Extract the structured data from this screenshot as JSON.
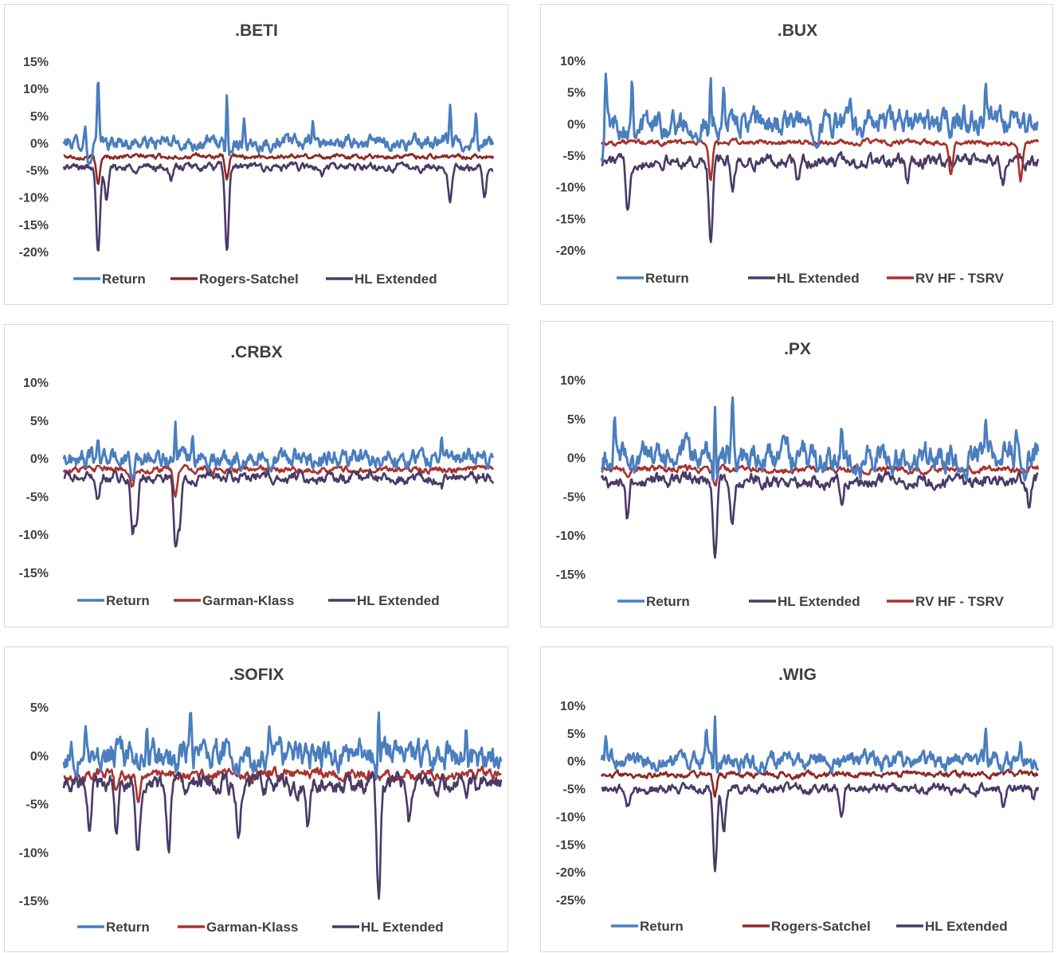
{
  "colors": {
    "Return": "#4a7ebf",
    "Rogers-Satchel": "#8b2a26",
    "Garman-Klass": "#a83430",
    "HL Extended": "#4a3a66",
    "RV HF - TSRV": "#a8322d"
  },
  "chart_data": [
    {
      "type": "line",
      "title": ".BETI",
      "ylim": [
        -20,
        15
      ],
      "yticks": [
        "15%",
        "10%",
        "5%",
        "0%",
        "-5%",
        "-10%",
        "-15%",
        "-20%"
      ],
      "ytick_values": [
        15,
        10,
        5,
        0,
        -5,
        -10,
        -15,
        -20
      ],
      "legend": [
        "Return",
        "Rogers-Satchel",
        "HL Extended"
      ],
      "legend_placement": "bottom",
      "grid": false,
      "series": [
        {
          "name": "Return",
          "approx": {
            "base": 0,
            "noise": 0.9,
            "spikes": [
              [
                0.08,
                12
              ],
              [
                0.05,
                3
              ],
              [
                0.38,
                9
              ],
              [
                0.58,
                4
              ],
              [
                0.42,
                4.5
              ],
              [
                0.9,
                7
              ],
              [
                0.96,
                5.5
              ]
            ],
            "dips": [
              [
                0.06,
                -4
              ],
              [
                0.38,
                -5
              ]
            ]
          }
        },
        {
          "name": "Rogers-Satchel",
          "approx": {
            "base": -2.5,
            "noise": 0.3,
            "dips": [
              [
                0.08,
                -8
              ],
              [
                0.38,
                -7
              ]
            ]
          }
        },
        {
          "name": "HL Extended",
          "approx": {
            "base": -4.5,
            "noise": 0.5,
            "dips": [
              [
                0.08,
                -19.5
              ],
              [
                0.38,
                -20
              ],
              [
                0.1,
                -11
              ],
              [
                0.25,
                -7
              ],
              [
                0.6,
                -6
              ],
              [
                0.9,
                -11
              ],
              [
                0.98,
                -10
              ]
            ]
          }
        }
      ]
    },
    {
      "type": "line",
      "title": ".BUX",
      "ylim": [
        -20,
        10
      ],
      "yticks": [
        "10%",
        "5%",
        "0%",
        "-5%",
        "-10%",
        "-15%",
        "-20%"
      ],
      "ytick_values": [
        10,
        5,
        0,
        -5,
        -10,
        -15,
        -20
      ],
      "legend": [
        "Return",
        "HL Extended",
        "RV HF - TSRV"
      ],
      "legend_placement": "bottom",
      "grid": false,
      "series": [
        {
          "name": "Return",
          "approx": {
            "base": 0,
            "noise": 1.5,
            "spikes": [
              [
                0.01,
                8
              ],
              [
                0.07,
                7
              ],
              [
                0.25,
                7.5
              ],
              [
                0.28,
                6
              ],
              [
                0.57,
                4
              ],
              [
                0.88,
                6.5
              ],
              [
                0.83,
                3
              ]
            ],
            "dips": [
              [
                0.0,
                -4
              ],
              [
                0.25,
                -6
              ]
            ]
          }
        },
        {
          "name": "HL Extended",
          "approx": {
            "base": -6,
            "noise": 0.7,
            "dips": [
              [
                0.06,
                -13.5
              ],
              [
                0.25,
                -19
              ],
              [
                0.3,
                -10
              ],
              [
                0.45,
                -9
              ],
              [
                0.7,
                -9.5
              ],
              [
                0.92,
                -9
              ]
            ]
          }
        },
        {
          "name": "RV HF - TSRV",
          "approx": {
            "base": -3,
            "noise": 0.3,
            "dips": [
              [
                0.25,
                -9
              ],
              [
                0.8,
                -8
              ],
              [
                0.96,
                -9
              ]
            ]
          }
        }
      ]
    },
    {
      "type": "line",
      "title": ".CRBX",
      "ylim": [
        -15,
        10
      ],
      "yticks": [
        "10%",
        "5%",
        "0%",
        "-5%",
        "-10%",
        "-15%"
      ],
      "ytick_values": [
        10,
        5,
        0,
        -5,
        -10,
        -15
      ],
      "legend": [
        "Return",
        "Garman-Klass",
        "HL Extended"
      ],
      "legend_placement": "bottom",
      "grid": false,
      "series": [
        {
          "name": "Return",
          "approx": {
            "base": 0,
            "noise": 0.8,
            "spikes": [
              [
                0.26,
                4.8
              ],
              [
                0.08,
                2.5
              ],
              [
                0.3,
                3
              ],
              [
                0.88,
                2.8
              ]
            ],
            "dips": [
              [
                0.16,
                -3
              ],
              [
                0.26,
                -4
              ]
            ]
          }
        },
        {
          "name": "Garman-Klass",
          "approx": {
            "base": -1.5,
            "noise": 0.3,
            "dips": [
              [
                0.26,
                -5
              ],
              [
                0.16,
                -3.5
              ]
            ]
          }
        },
        {
          "name": "HL Extended",
          "approx": {
            "base": -2.5,
            "noise": 0.5,
            "dips": [
              [
                0.16,
                -9.5
              ],
              [
                0.17,
                -8
              ],
              [
                0.26,
                -11.5
              ],
              [
                0.27,
                -9
              ],
              [
                0.08,
                -5
              ],
              [
                0.88,
                -4
              ]
            ]
          }
        }
      ]
    },
    {
      "type": "line",
      "title": ".PX",
      "ylim": [
        -15,
        10
      ],
      "yticks": [
        "10%",
        "5%",
        "0%",
        "-5%",
        "-10%",
        "-15%"
      ],
      "ytick_values": [
        10,
        5,
        0,
        -5,
        -10,
        -15
      ],
      "legend": [
        "Return",
        "HL Extended",
        "RV HF - TSRV"
      ],
      "legend_placement": "bottom",
      "grid": false,
      "series": [
        {
          "name": "Return",
          "approx": {
            "base": 0,
            "noise": 1.3,
            "spikes": [
              [
                0.26,
                6.5
              ],
              [
                0.3,
                8
              ],
              [
                0.03,
                5.5
              ],
              [
                0.55,
                4
              ],
              [
                0.88,
                5
              ],
              [
                0.95,
                3.5
              ]
            ],
            "dips": [
              [
                0.26,
                -5
              ],
              [
                0.0,
                -2.5
              ]
            ]
          }
        },
        {
          "name": "HL Extended",
          "approx": {
            "base": -3,
            "noise": 0.6,
            "dips": [
              [
                0.26,
                -12.5
              ],
              [
                0.3,
                -8.5
              ],
              [
                0.06,
                -8
              ],
              [
                0.55,
                -6
              ],
              [
                0.98,
                -6
              ]
            ]
          }
        },
        {
          "name": "RV HF - TSRV",
          "approx": {
            "base": -1.5,
            "noise": 0.3,
            "dips": [
              [
                0.26,
                -4
              ],
              [
                0.06,
                -3
              ]
            ]
          }
        }
      ]
    },
    {
      "type": "line",
      "title": ".SOFIX",
      "ylim": [
        -15,
        5
      ],
      "yticks": [
        "5%",
        "0%",
        "-5%",
        "-10%",
        "-15%"
      ],
      "ytick_values": [
        5,
        0,
        -5,
        -10,
        -15
      ],
      "legend": [
        "Return",
        "Garman-Klass",
        "HL Extended"
      ],
      "legend_placement": "bottom",
      "grid": false,
      "series": [
        {
          "name": "Return",
          "approx": {
            "base": 0,
            "noise": 1.1,
            "spikes": [
              [
                0.29,
                4.8
              ],
              [
                0.72,
                4.8
              ],
              [
                0.19,
                3
              ],
              [
                0.05,
                3
              ],
              [
                0.47,
                3
              ],
              [
                0.92,
                3
              ]
            ],
            "dips": [
              [
                0.19,
                -3
              ],
              [
                0.72,
                -3
              ]
            ]
          }
        },
        {
          "name": "Garman-Klass",
          "approx": {
            "base": -2,
            "noise": 0.4,
            "dips": [
              [
                0.17,
                -5
              ],
              [
                0.12,
                -4
              ]
            ]
          }
        },
        {
          "name": "HL Extended",
          "approx": {
            "base": -3,
            "noise": 0.7,
            "dips": [
              [
                0.06,
                -8
              ],
              [
                0.12,
                -9
              ],
              [
                0.17,
                -10
              ],
              [
                0.24,
                -10
              ],
              [
                0.4,
                -9
              ],
              [
                0.72,
                -14.5
              ],
              [
                0.56,
                -7
              ],
              [
                0.79,
                -6.5
              ]
            ]
          }
        }
      ]
    },
    {
      "type": "line",
      "title": ".WIG",
      "ylim": [
        -25,
        10
      ],
      "yticks": [
        "10%",
        "5%",
        "0%",
        "-5%",
        "-10%",
        "-15%",
        "-20%",
        "-25%"
      ],
      "ytick_values": [
        10,
        5,
        0,
        -5,
        -10,
        -15,
        -20,
        -25
      ],
      "legend": [
        "Return",
        "Rogers-Satchel",
        "HL Extended"
      ],
      "legend_placement": "bottom",
      "grid": false,
      "series": [
        {
          "name": "Return",
          "approx": {
            "base": 0,
            "noise": 1.1,
            "spikes": [
              [
                0.26,
                8
              ],
              [
                0.24,
                6
              ],
              [
                0.01,
                4.5
              ],
              [
                0.88,
                6
              ],
              [
                0.96,
                3.5
              ]
            ],
            "dips": [
              [
                0.26,
                -4
              ]
            ]
          }
        },
        {
          "name": "Rogers-Satchel",
          "approx": {
            "base": -2.5,
            "noise": 0.4,
            "dips": [
              [
                0.26,
                -6
              ]
            ]
          }
        },
        {
          "name": "HL Extended",
          "approx": {
            "base": -5,
            "noise": 0.6,
            "dips": [
              [
                0.26,
                -20.5
              ],
              [
                0.28,
                -12
              ],
              [
                0.55,
                -10
              ],
              [
                0.06,
                -8
              ],
              [
                0.92,
                -8
              ],
              [
                0.99,
                -7
              ]
            ]
          }
        }
      ]
    }
  ]
}
